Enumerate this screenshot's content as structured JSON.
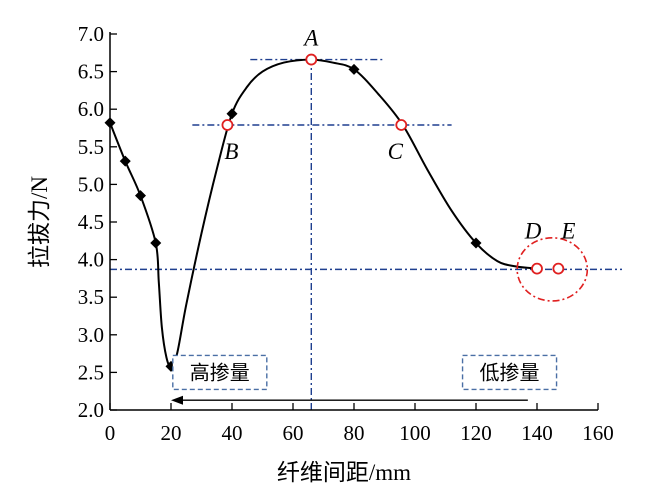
{
  "chart_data": {
    "type": "line",
    "xlabel": "纤维间距/mm",
    "ylabel": "拉拔力/N",
    "xlim": [
      0,
      160
    ],
    "ylim": [
      2.0,
      7.0
    ],
    "xticks": [
      "0",
      "20",
      "40",
      "60",
      "80",
      "100",
      "120",
      "140",
      "160"
    ],
    "yticks": [
      "2.0",
      "2.5",
      "3.0",
      "3.5",
      "4.0",
      "4.5",
      "5.0",
      "5.5",
      "6.0",
      "6.5",
      "7.0"
    ],
    "measured_points": [
      {
        "x": 0,
        "y": 5.82
      },
      {
        "x": 5,
        "y": 5.31
      },
      {
        "x": 10,
        "y": 4.85
      },
      {
        "x": 15,
        "y": 4.22
      },
      {
        "x": 20,
        "y": 2.58
      },
      {
        "x": 40,
        "y": 5.94
      },
      {
        "x": 80,
        "y": 6.53
      },
      {
        "x": 120,
        "y": 4.22
      }
    ],
    "curve": [
      {
        "x": 0,
        "y": 5.82
      },
      {
        "x": 5,
        "y": 5.31
      },
      {
        "x": 10,
        "y": 4.85
      },
      {
        "x": 15,
        "y": 4.22
      },
      {
        "x": 16,
        "y": 3.7
      },
      {
        "x": 17,
        "y": 3.1
      },
      {
        "x": 18.5,
        "y": 2.7
      },
      {
        "x": 20,
        "y": 2.58
      },
      {
        "x": 22,
        "y": 2.75
      },
      {
        "x": 25,
        "y": 3.4
      },
      {
        "x": 30,
        "y": 4.35
      },
      {
        "x": 35,
        "y": 5.2
      },
      {
        "x": 40,
        "y": 5.94
      },
      {
        "x": 45,
        "y": 6.3
      },
      {
        "x": 50,
        "y": 6.5
      },
      {
        "x": 57,
        "y": 6.62
      },
      {
        "x": 66,
        "y": 6.66
      },
      {
        "x": 73,
        "y": 6.62
      },
      {
        "x": 80,
        "y": 6.53
      },
      {
        "x": 88,
        "y": 6.2
      },
      {
        "x": 96,
        "y": 5.79
      },
      {
        "x": 104,
        "y": 5.2
      },
      {
        "x": 112,
        "y": 4.65
      },
      {
        "x": 120,
        "y": 4.22
      },
      {
        "x": 127,
        "y": 3.98
      },
      {
        "x": 133,
        "y": 3.91
      },
      {
        "x": 140,
        "y": 3.88
      }
    ],
    "key_points": [
      {
        "label": "A",
        "x": 66,
        "y": 6.66,
        "label_pos": "above"
      },
      {
        "label": "B",
        "x": 38.5,
        "y": 5.79,
        "label_pos": "below"
      },
      {
        "label": "C",
        "x": 95.5,
        "y": 5.79,
        "label_pos": "below-left"
      },
      {
        "label": "D",
        "x": 140,
        "y": 3.88,
        "label_pos": "above-left"
      },
      {
        "label": "E",
        "x": 147,
        "y": 3.88,
        "label_pos": "above-right"
      }
    ],
    "reference_lines": [
      {
        "orientation": "h",
        "y": 6.66,
        "x_from": 46,
        "x_to": 90
      },
      {
        "orientation": "h",
        "y": 5.79,
        "x_from": 27,
        "x_to": 112
      },
      {
        "orientation": "h",
        "y": 3.87,
        "x_from": 0,
        "x_to": 160
      },
      {
        "orientation": "v",
        "x": 66,
        "y_from": 2.0,
        "y_to": 6.7
      }
    ],
    "highlight_ellipse": {
      "cx": 145,
      "cy": 3.87,
      "rx": 11.5,
      "ry": 0.42
    },
    "arrow": {
      "from_x": 137,
      "to_x": 20,
      "y": 2.13
    },
    "boxed_labels": [
      {
        "text": "高掺量",
        "x": 36,
        "y": 2.5
      },
      {
        "text": "低掺量",
        "x": 131,
        "y": 2.5
      }
    ],
    "colors": {
      "curve": "#000000",
      "reference": "#1f3f8f",
      "key_point": "#e02020",
      "box_border": "#4a6fa5"
    }
  }
}
